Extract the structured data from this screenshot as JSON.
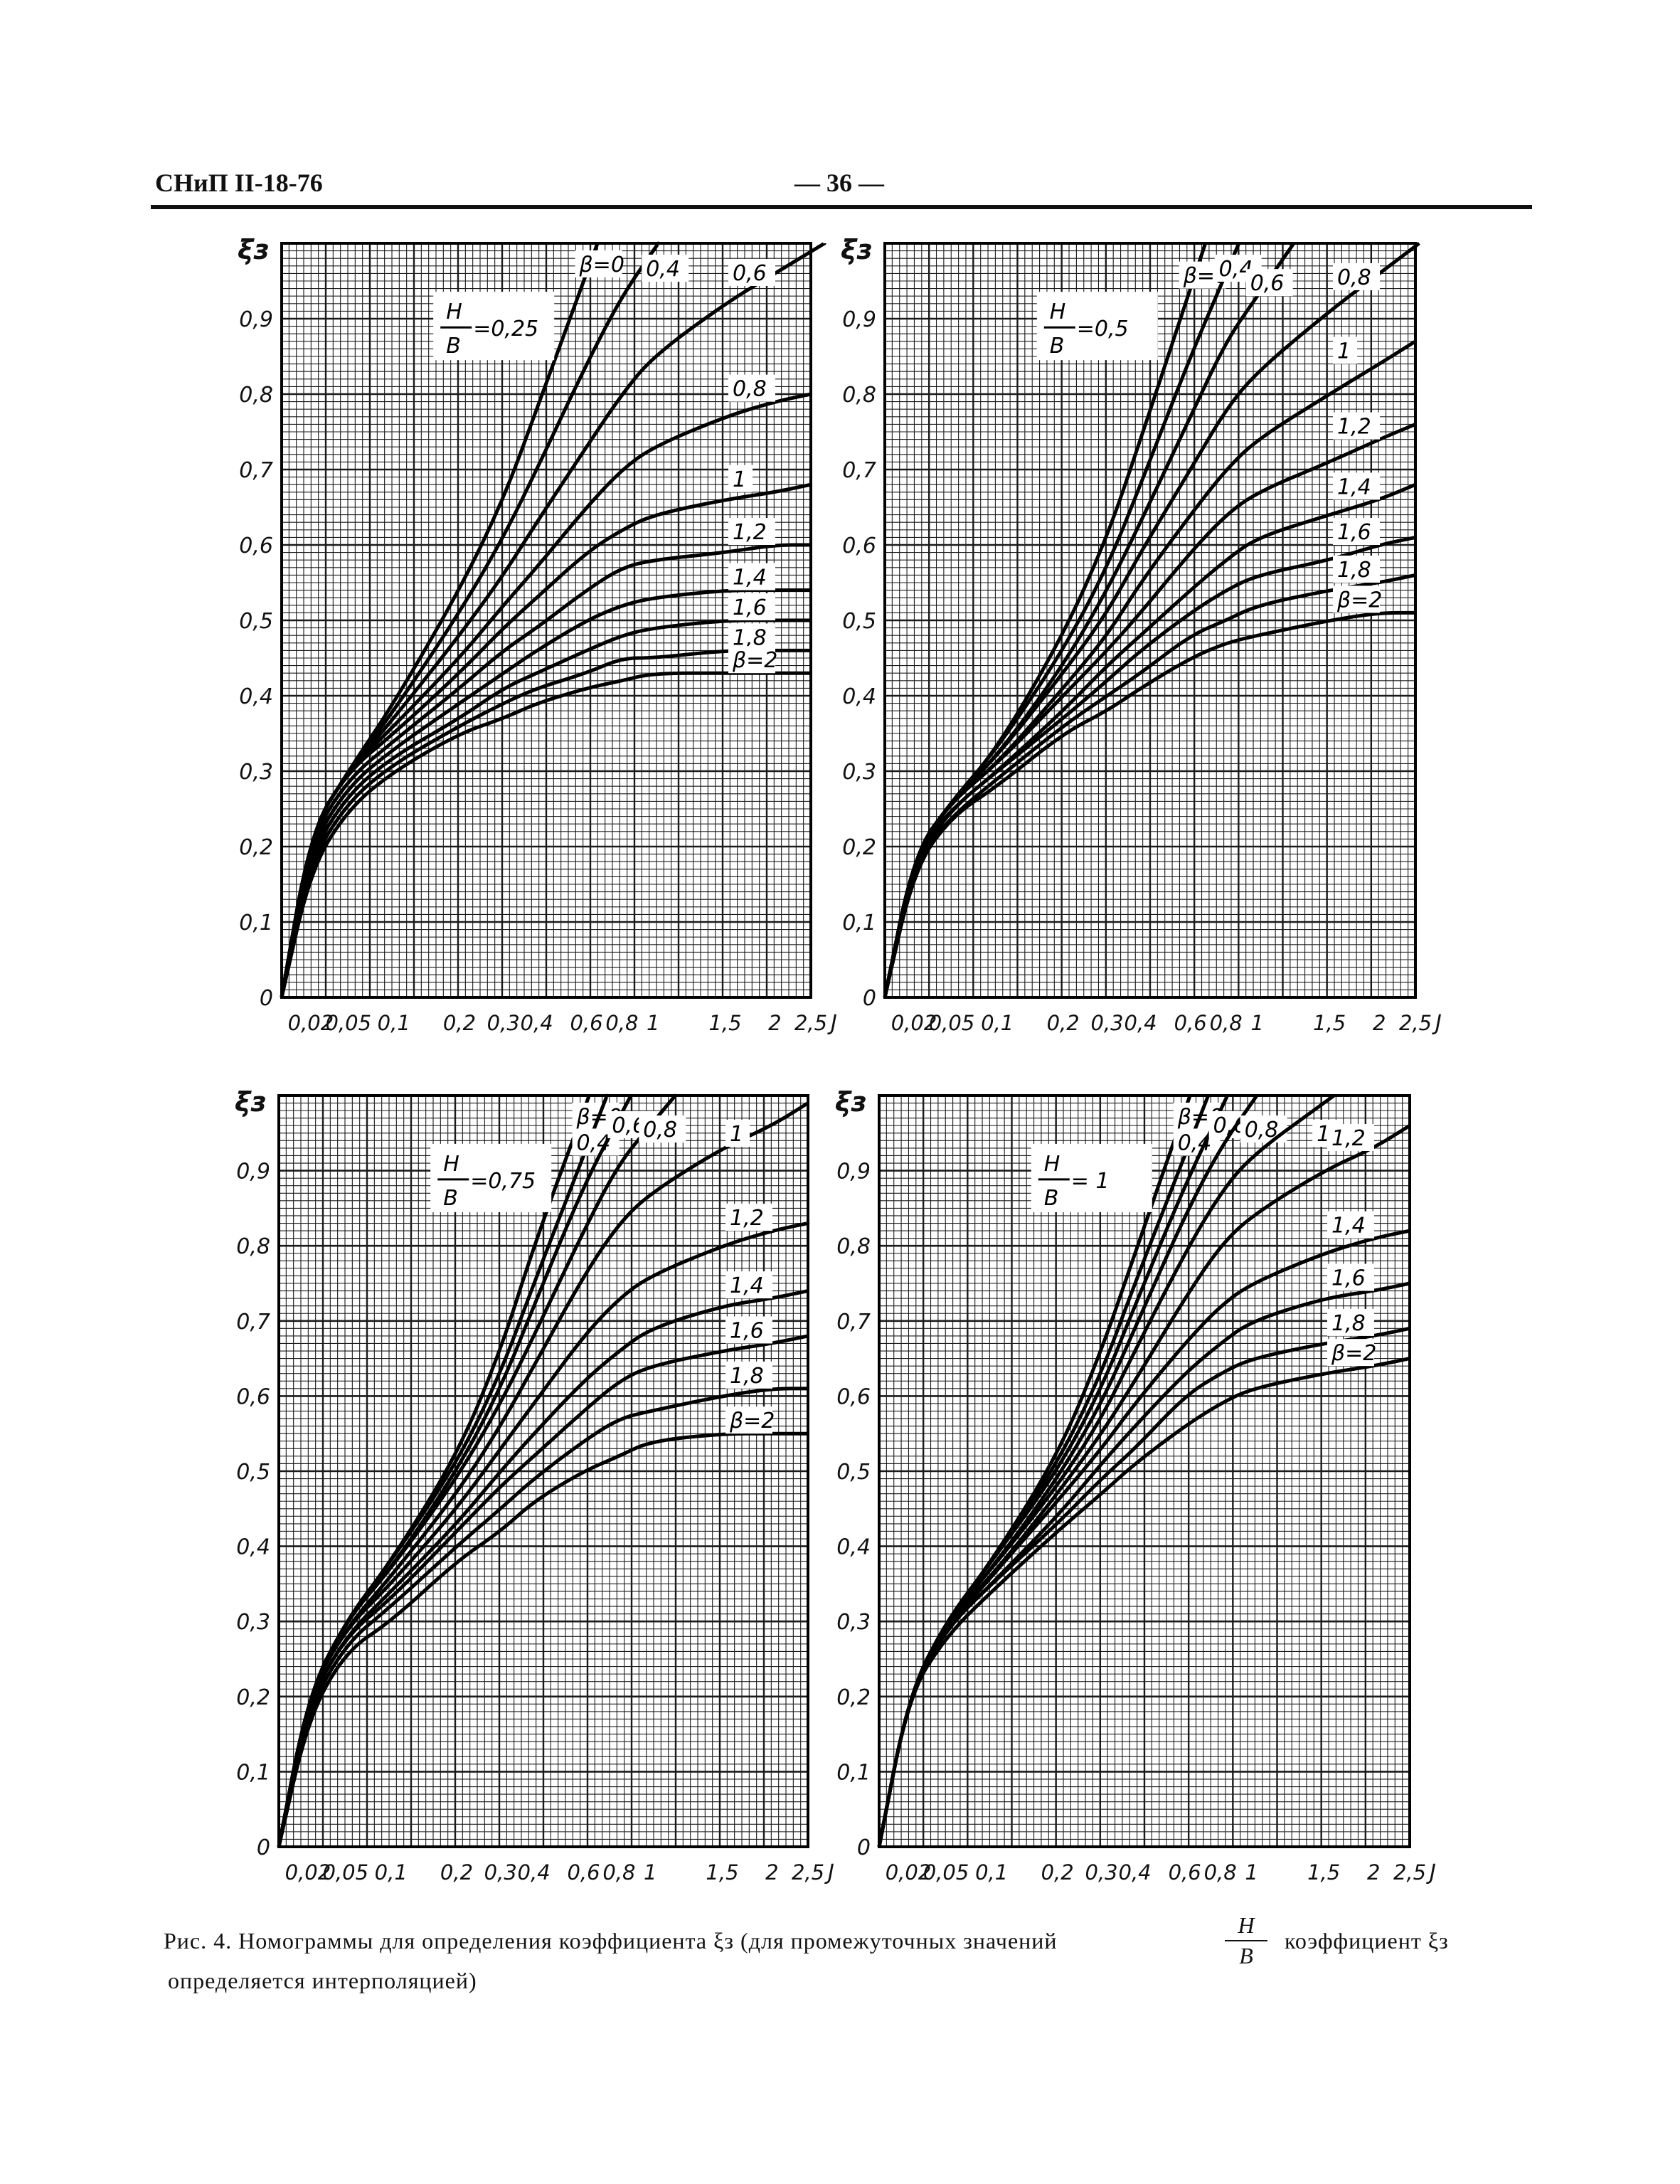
{
  "header": {
    "code": "СНиП II-18-76",
    "page": "— 36 —"
  },
  "caption": {
    "line1_start": "Рис. 4. Номограммы для определения коэффициента ξз (для промежуточных значений",
    "fraction_num": "H",
    "fraction_den": "B",
    "line1_end": "коэффициент ξз",
    "line2": "определяется интерполяцией)"
  },
  "chart_data": [
    {
      "type": "line",
      "title": "",
      "param_label": {
        "num": "H",
        "den": "B",
        "value": "=0,25"
      },
      "ylabel": "ξз",
      "xlabel": "J",
      "yticks": [
        "0",
        "0,1",
        "0,2",
        "0,3",
        "0,4",
        "0,5",
        "0,6",
        "0,7",
        "0,8",
        "0,9"
      ],
      "xticks": [
        "0,02",
        "0,05",
        "0,1",
        "0,2",
        "0,3",
        "0,4",
        "0,6",
        "0,8",
        "1",
        "1,5",
        "2",
        "2,5"
      ],
      "ylim": [
        0,
        1
      ],
      "xlim": [
        0,
        2.5
      ],
      "x_scale": "nonlinear (nomogram)",
      "x": [
        0,
        0.02,
        0.05,
        0.1,
        0.2,
        0.3,
        0.4,
        0.6,
        0.8,
        1,
        1.5,
        2,
        2.5
      ],
      "series": [
        {
          "name": "β=0",
          "values": [
            0,
            0.22,
            0.3,
            0.39,
            0.54,
            0.66,
            0.78,
            0.96,
            null,
            null,
            null,
            null,
            null
          ]
        },
        {
          "name": "0,4",
          "values": [
            0,
            0.22,
            0.3,
            0.38,
            0.51,
            0.61,
            0.7,
            0.84,
            0.93,
            0.99,
            null,
            null,
            null
          ]
        },
        {
          "name": "0,6",
          "values": [
            0,
            0.22,
            0.3,
            0.37,
            0.48,
            0.56,
            0.63,
            0.73,
            0.8,
            0.85,
            0.92,
            0.96,
            null
          ]
        },
        {
          "name": "0,8",
          "values": [
            0,
            0.22,
            0.3,
            0.36,
            0.45,
            0.52,
            0.57,
            0.65,
            0.7,
            0.73,
            0.77,
            0.79,
            0.8
          ]
        },
        {
          "name": "1",
          "values": [
            0,
            0.22,
            0.3,
            0.35,
            0.43,
            0.49,
            0.53,
            0.59,
            0.62,
            0.64,
            0.66,
            0.67,
            0.68
          ]
        },
        {
          "name": "1,2",
          "values": [
            0,
            0.21,
            0.29,
            0.34,
            0.41,
            0.46,
            0.49,
            0.54,
            0.57,
            0.58,
            0.59,
            0.6,
            0.6
          ]
        },
        {
          "name": "1,4",
          "values": [
            0,
            0.2,
            0.28,
            0.33,
            0.39,
            0.43,
            0.46,
            0.5,
            0.52,
            0.53,
            0.54,
            0.54,
            0.54
          ]
        },
        {
          "name": "1,6",
          "values": [
            0,
            0.19,
            0.27,
            0.32,
            0.37,
            0.41,
            0.43,
            0.46,
            0.48,
            0.49,
            0.5,
            0.5,
            0.5
          ]
        },
        {
          "name": "1,8",
          "values": [
            0,
            0.18,
            0.26,
            0.31,
            0.36,
            0.39,
            0.41,
            0.43,
            0.45,
            0.45,
            0.46,
            0.46,
            0.46
          ]
        },
        {
          "name": "β=2",
          "values": [
            0,
            0.17,
            0.25,
            0.3,
            0.35,
            0.37,
            0.39,
            0.41,
            0.42,
            0.43,
            0.43,
            0.43,
            0.43
          ]
        }
      ]
    },
    {
      "type": "line",
      "title": "",
      "param_label": {
        "num": "H",
        "den": "B",
        "value": "=0,5"
      },
      "ylabel": "ξз",
      "xlabel": "J",
      "yticks": [
        "0",
        "0,1",
        "0,2",
        "0,3",
        "0,4",
        "0,5",
        "0,6",
        "0,7",
        "0,8",
        "0,9"
      ],
      "xticks": [
        "0,02",
        "0,05",
        "0,1",
        "0,2",
        "0,3",
        "0,4",
        "0,6",
        "0,8",
        "1",
        "1,5",
        "2",
        "2,5"
      ],
      "ylim": [
        0,
        1
      ],
      "xlim": [
        0,
        2.5
      ],
      "x_scale": "nonlinear (nomogram)",
      "x": [
        0,
        0.02,
        0.05,
        0.1,
        0.2,
        0.3,
        0.4,
        0.6,
        0.8,
        1,
        1.5,
        2,
        2.5
      ],
      "series": [
        {
          "name": "β=0",
          "values": [
            0,
            0.19,
            0.26,
            0.33,
            0.48,
            0.61,
            0.74,
            0.94,
            null,
            null,
            null,
            null,
            null
          ]
        },
        {
          "name": "0,4",
          "values": [
            0,
            0.19,
            0.26,
            0.33,
            0.46,
            0.57,
            0.68,
            0.85,
            0.96,
            null,
            null,
            null,
            null
          ]
        },
        {
          "name": "0,6",
          "values": [
            0,
            0.19,
            0.26,
            0.32,
            0.44,
            0.54,
            0.63,
            0.77,
            0.87,
            0.93,
            null,
            null,
            null
          ]
        },
        {
          "name": "0,8",
          "values": [
            0,
            0.19,
            0.26,
            0.32,
            0.43,
            0.51,
            0.59,
            0.7,
            0.78,
            0.83,
            0.91,
            0.96,
            null
          ]
        },
        {
          "name": "1",
          "values": [
            0,
            0.19,
            0.26,
            0.31,
            0.41,
            0.48,
            0.55,
            0.64,
            0.7,
            0.74,
            0.8,
            0.84,
            0.87
          ]
        },
        {
          "name": "1,2",
          "values": [
            0,
            0.19,
            0.26,
            0.31,
            0.4,
            0.46,
            0.51,
            0.59,
            0.64,
            0.67,
            0.71,
            0.74,
            0.76
          ]
        },
        {
          "name": "1,4",
          "values": [
            0,
            0.19,
            0.25,
            0.3,
            0.38,
            0.44,
            0.48,
            0.54,
            0.58,
            0.61,
            0.64,
            0.66,
            0.68
          ]
        },
        {
          "name": "1,6",
          "values": [
            0,
            0.18,
            0.25,
            0.3,
            0.37,
            0.42,
            0.46,
            0.51,
            0.54,
            0.56,
            0.58,
            0.6,
            0.61
          ]
        },
        {
          "name": "1,8",
          "values": [
            0,
            0.18,
            0.24,
            0.29,
            0.36,
            0.4,
            0.43,
            0.48,
            0.5,
            0.52,
            0.54,
            0.55,
            0.56
          ]
        },
        {
          "name": "β=2",
          "values": [
            0,
            0.17,
            0.24,
            0.28,
            0.35,
            0.38,
            0.41,
            0.45,
            0.47,
            0.48,
            0.5,
            0.51,
            0.51
          ]
        }
      ]
    },
    {
      "type": "line",
      "title": "",
      "param_label": {
        "num": "H",
        "den": "B",
        "value": "=0,75"
      },
      "ylabel": "ξз",
      "xlabel": "J",
      "yticks": [
        "0",
        "0,1",
        "0,2",
        "0,3",
        "0,4",
        "0,5",
        "0,6",
        "0,7",
        "0,8",
        "0,9"
      ],
      "xticks": [
        "0,02",
        "0,05",
        "0,1",
        "0,2",
        "0,3",
        "0,4",
        "0,6",
        "0,8",
        "1",
        "1,5",
        "2",
        "2,5"
      ],
      "ylim": [
        0,
        1
      ],
      "xlim": [
        0,
        2.5
      ],
      "x_scale": "nonlinear (nomogram)",
      "x": [
        0,
        0.02,
        0.05,
        0.1,
        0.2,
        0.3,
        0.4,
        0.6,
        0.8,
        1,
        1.5,
        2,
        2.5
      ],
      "series": [
        {
          "name": "β=0",
          "values": [
            0,
            0.2,
            0.3,
            0.38,
            0.52,
            0.66,
            0.8,
            0.98,
            null,
            null,
            null,
            null,
            null
          ]
        },
        {
          "name": "0,4",
          "values": [
            0,
            0.2,
            0.3,
            0.38,
            0.51,
            0.63,
            0.75,
            0.92,
            null,
            null,
            null,
            null,
            null
          ]
        },
        {
          "name": "0,6",
          "values": [
            0,
            0.2,
            0.3,
            0.37,
            0.5,
            0.61,
            0.72,
            0.88,
            0.97,
            null,
            null,
            null,
            null
          ]
        },
        {
          "name": "0,8",
          "values": [
            0,
            0.2,
            0.3,
            0.37,
            0.49,
            0.59,
            0.68,
            0.82,
            0.91,
            0.96,
            null,
            null,
            null
          ]
        },
        {
          "name": "1",
          "values": [
            0,
            0.2,
            0.29,
            0.36,
            0.47,
            0.56,
            0.64,
            0.76,
            0.83,
            0.87,
            0.93,
            0.96,
            0.99
          ]
        },
        {
          "name": "1,2",
          "values": [
            0,
            0.2,
            0.29,
            0.35,
            0.45,
            0.53,
            0.59,
            0.68,
            0.73,
            0.76,
            0.8,
            0.82,
            0.83
          ]
        },
        {
          "name": "1,4",
          "values": [
            0,
            0.19,
            0.28,
            0.34,
            0.43,
            0.5,
            0.55,
            0.62,
            0.66,
            0.69,
            0.72,
            0.73,
            0.74
          ]
        },
        {
          "name": "1,6",
          "values": [
            0,
            0.19,
            0.28,
            0.33,
            0.42,
            0.48,
            0.52,
            0.58,
            0.62,
            0.64,
            0.66,
            0.67,
            0.68
          ]
        },
        {
          "name": "1,8",
          "values": [
            0,
            0.18,
            0.27,
            0.32,
            0.4,
            0.45,
            0.49,
            0.54,
            0.57,
            0.58,
            0.6,
            0.61,
            0.61
          ]
        },
        {
          "name": "β=2",
          "values": [
            0,
            0.17,
            0.26,
            0.3,
            0.38,
            0.42,
            0.46,
            0.5,
            0.52,
            0.54,
            0.55,
            0.55,
            0.55
          ]
        }
      ]
    },
    {
      "type": "line",
      "title": "",
      "param_label": {
        "num": "H",
        "den": "B",
        "value": "= 1"
      },
      "ylabel": "ξз",
      "xlabel": "J",
      "yticks": [
        "0",
        "0,1",
        "0,2",
        "0,3",
        "0,4",
        "0,5",
        "0,6",
        "0,7",
        "0,8",
        "0,9"
      ],
      "xticks": [
        "0,02",
        "0,05",
        "0,1",
        "0,2",
        "0,3",
        "0,4",
        "0,6",
        "0,8",
        "1",
        "1,5",
        "2",
        "2,5"
      ],
      "ylim": [
        0,
        1
      ],
      "xlim": [
        0,
        2.5
      ],
      "x_scale": "nonlinear (nomogram)",
      "x": [
        0,
        0.02,
        0.05,
        0.1,
        0.2,
        0.3,
        0.4,
        0.6,
        0.8,
        1,
        1.5,
        2,
        2.5
      ],
      "series": [
        {
          "name": "β=0",
          "values": [
            0,
            0.2,
            0.3,
            0.38,
            0.52,
            0.66,
            0.79,
            0.98,
            null,
            null,
            null,
            null,
            null
          ]
        },
        {
          "name": "0,4",
          "values": [
            0,
            0.2,
            0.3,
            0.38,
            0.51,
            0.63,
            0.75,
            0.92,
            null,
            null,
            null,
            null,
            null
          ]
        },
        {
          "name": "0,6",
          "values": [
            0,
            0.2,
            0.3,
            0.38,
            0.5,
            0.61,
            0.72,
            0.88,
            0.98,
            null,
            null,
            null,
            null
          ]
        },
        {
          "name": "0,8",
          "values": [
            0,
            0.2,
            0.3,
            0.37,
            0.49,
            0.59,
            0.69,
            0.84,
            0.93,
            0.99,
            null,
            null,
            null
          ]
        },
        {
          "name": "1",
          "values": [
            0,
            0.2,
            0.3,
            0.37,
            0.48,
            0.57,
            0.66,
            0.79,
            0.87,
            0.92,
            0.99,
            null,
            null
          ]
        },
        {
          "name": "1,2",
          "values": [
            0,
            0.2,
            0.3,
            0.36,
            0.47,
            0.55,
            0.62,
            0.73,
            0.8,
            0.84,
            0.9,
            0.93,
            0.96
          ]
        },
        {
          "name": "1,4",
          "values": [
            0,
            0.2,
            0.29,
            0.36,
            0.46,
            0.53,
            0.59,
            0.67,
            0.72,
            0.75,
            0.79,
            0.81,
            0.82
          ]
        },
        {
          "name": "1,6",
          "values": [
            0,
            0.2,
            0.29,
            0.35,
            0.44,
            0.51,
            0.56,
            0.63,
            0.67,
            0.7,
            0.73,
            0.74,
            0.75
          ]
        },
        {
          "name": "1,8",
          "values": [
            0,
            0.2,
            0.29,
            0.35,
            0.43,
            0.49,
            0.53,
            0.6,
            0.63,
            0.65,
            0.67,
            0.68,
            0.69
          ]
        },
        {
          "name": "β=2",
          "values": [
            0,
            0.2,
            0.28,
            0.34,
            0.42,
            0.47,
            0.51,
            0.56,
            0.59,
            0.61,
            0.63,
            0.64,
            0.65
          ]
        }
      ]
    }
  ]
}
